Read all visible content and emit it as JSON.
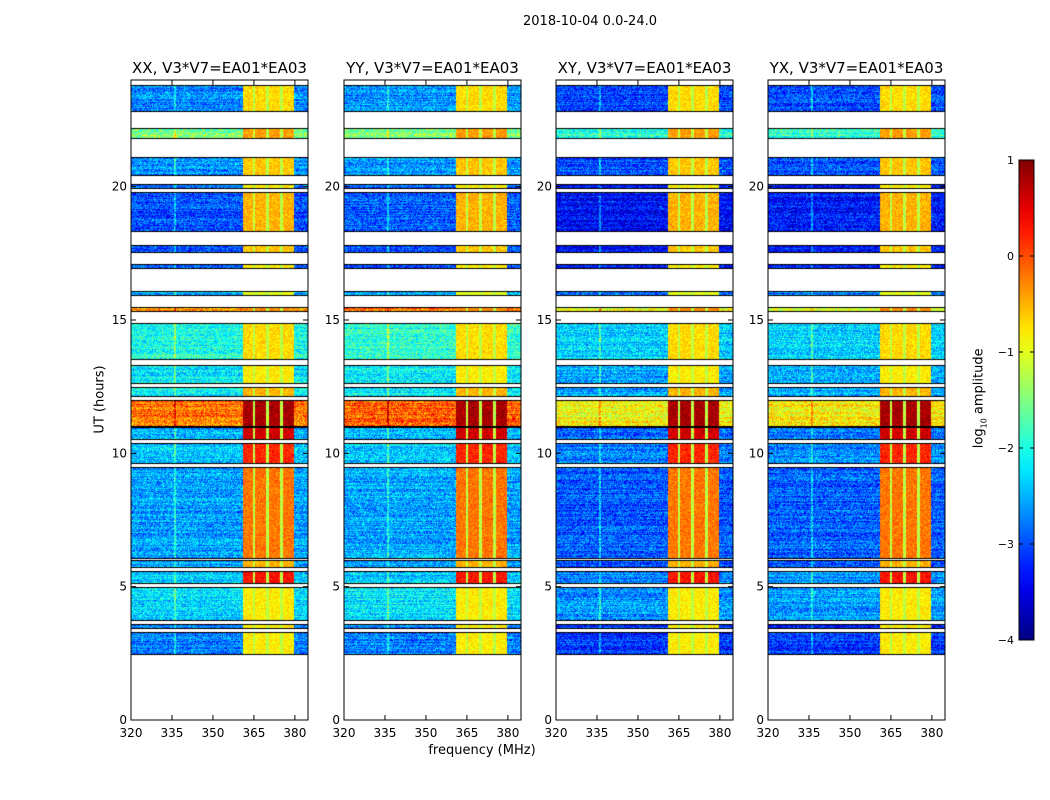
{
  "chart_data": {
    "type": "heatmap",
    "title": "2018-10-04 0.0-24.0",
    "xlabel": "frequency (MHz)",
    "ylabel": "UT (hours)",
    "xlim": [
      320,
      384.8
    ],
    "ylim": [
      0,
      24
    ],
    "xticks": [
      "320",
      "335",
      "350",
      "365",
      "380"
    ],
    "xtick_values": [
      320,
      335,
      350,
      365,
      380
    ],
    "yticks": [
      "0",
      "5",
      "10",
      "15",
      "20"
    ],
    "ytick_values": [
      0,
      5,
      10,
      15,
      20
    ],
    "colorbar": {
      "label": "log10 amplitude",
      "label_main": "log",
      "label_sub": "10",
      "label_rest": " amplitude",
      "range": [
        -4,
        1
      ],
      "ticks": [
        "−4",
        "−3",
        "−2",
        "−1",
        "0",
        "1"
      ],
      "tick_values": [
        -4,
        -3,
        -2,
        -1,
        0,
        1
      ],
      "colormap": "jet"
    },
    "signal_blocks_mhz": [
      [
        361,
        364.5
      ],
      [
        365.5,
        369.5
      ],
      [
        370.5,
        374.5
      ],
      [
        375.5,
        379.5
      ]
    ],
    "time_bands": [
      {
        "start": 2.45,
        "end": 3.3,
        "base": -2.8,
        "signal": -0.8
      },
      {
        "start": 3.4,
        "end": 3.6,
        "base": -2.8,
        "signal": -0.8
      },
      {
        "start": 3.7,
        "end": 5.0,
        "base": -2.3,
        "signal": -0.8
      },
      {
        "start": 5.1,
        "end": 5.6,
        "base": -2.4,
        "signal": 0.3
      },
      {
        "start": 5.7,
        "end": 6.0,
        "base": -2.6,
        "signal": -0.5
      },
      {
        "start": 6.05,
        "end": 9.5,
        "base": -2.6,
        "signal": -0.2
      },
      {
        "start": 9.6,
        "end": 10.4,
        "base": -2.4,
        "signal": 0.2
      },
      {
        "start": 10.5,
        "end": 11.0,
        "base": -2.5,
        "signal": 0.6
      },
      {
        "start": 11.0,
        "end": 12.0,
        "base": -0.2,
        "signal": 0.8
      },
      {
        "start": 12.1,
        "end": 12.5,
        "base": -2.2,
        "signal": -0.5
      },
      {
        "start": 12.6,
        "end": 13.3,
        "base": -2.2,
        "signal": -0.8
      },
      {
        "start": 13.5,
        "end": 14.9,
        "base": -2.0,
        "signal": -0.7
      },
      {
        "start": 15.3,
        "end": 15.5,
        "base": -0.3,
        "signal": -0.3
      },
      {
        "start": 15.9,
        "end": 16.1,
        "base": -2.5,
        "signal": -1.0
      },
      {
        "start": 16.9,
        "end": 17.1,
        "base": -3.0,
        "signal": -0.8
      },
      {
        "start": 17.5,
        "end": 17.8,
        "base": -3.0,
        "signal": -0.6
      },
      {
        "start": 18.3,
        "end": 19.8,
        "base": -3.0,
        "signal": -0.5
      },
      {
        "start": 19.9,
        "end": 20.1,
        "base": -3.0,
        "signal": -0.8
      },
      {
        "start": 20.4,
        "end": 21.1,
        "base": -2.7,
        "signal": -0.6
      },
      {
        "start": 21.8,
        "end": 22.2,
        "base": -1.6,
        "signal": -0.4
      },
      {
        "start": 22.8,
        "end": 23.8,
        "base": -2.7,
        "signal": -0.7
      }
    ],
    "panels": [
      {
        "title": "XX, V3*V7=EA01*EA03",
        "base_offset": 0.0
      },
      {
        "title": "YY, V3*V7=EA01*EA03",
        "base_offset": 0.05
      },
      {
        "title": "XY, V3*V7=EA01*EA03",
        "base_offset": -0.35
      },
      {
        "title": "YX, V3*V7=EA01*EA03",
        "base_offset": -0.3
      }
    ]
  }
}
